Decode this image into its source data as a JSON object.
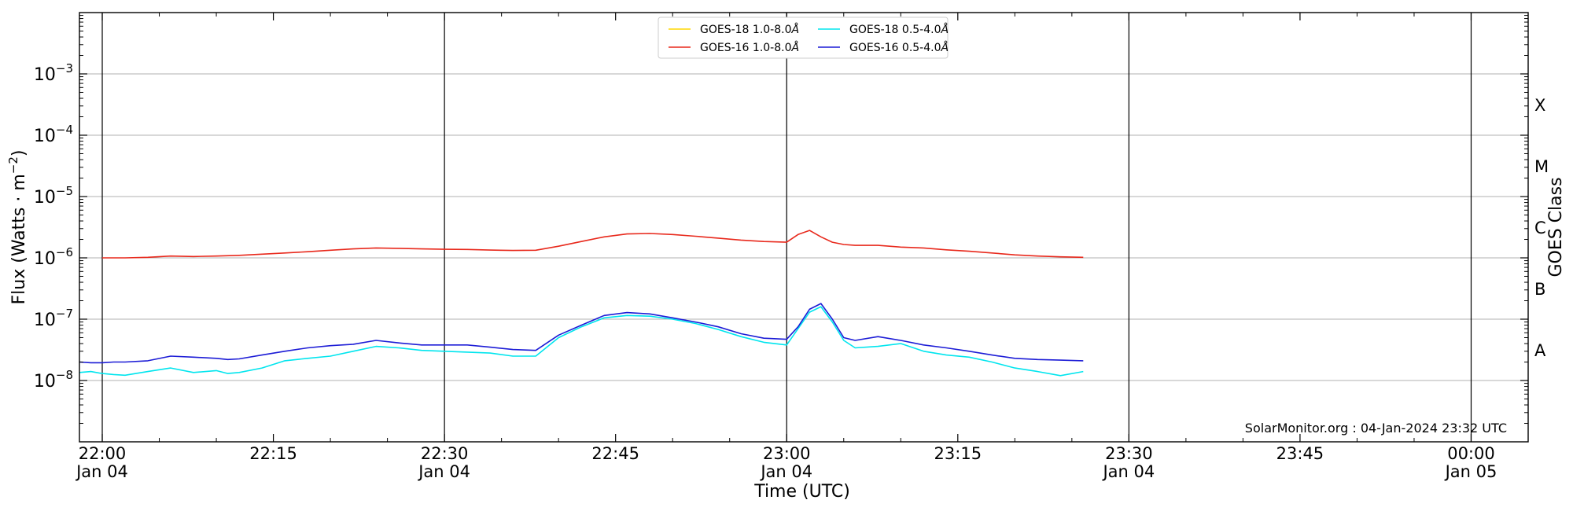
{
  "chart_data": {
    "type": "line",
    "xlabel": "Time (UTC)",
    "ylabel": "Flux (Watts · m",
    "ylabel_superscript": "−2",
    "ylabel_close": ")",
    "y2label": "GOES Class",
    "xlim": [
      "21:58",
      "00:05"
    ],
    "ylim": [
      1e-09,
      0.01
    ],
    "log_y": true,
    "grid": "horizontal",
    "legend_position": "top-center",
    "y_ticks": [
      {
        "value": -8,
        "base": "10",
        "exp": "−8"
      },
      {
        "value": -7,
        "base": "10",
        "exp": "−7"
      },
      {
        "value": -6,
        "base": "10",
        "exp": "−6"
      },
      {
        "value": -5,
        "base": "10",
        "exp": "−5"
      },
      {
        "value": -4,
        "base": "10",
        "exp": "−4"
      },
      {
        "value": -3,
        "base": "10",
        "exp": "−3"
      }
    ],
    "x_ticks": [
      {
        "time": "22:00",
        "label": "22:00",
        "sub": "Jan 04"
      },
      {
        "time": "22:15",
        "label": "22:15",
        "sub": ""
      },
      {
        "time": "22:30",
        "label": "22:30",
        "sub": "Jan 04"
      },
      {
        "time": "22:45",
        "label": "22:45",
        "sub": ""
      },
      {
        "time": "23:00",
        "label": "23:00",
        "sub": "Jan 04"
      },
      {
        "time": "23:15",
        "label": "23:15",
        "sub": ""
      },
      {
        "time": "23:30",
        "label": "23:30",
        "sub": "Jan 04"
      },
      {
        "time": "23:45",
        "label": "23:45",
        "sub": ""
      },
      {
        "time": "00:00",
        "label": "00:00",
        "sub": "Jan 05"
      }
    ],
    "vertical_lines": [
      "22:00",
      "22:30",
      "23:00",
      "23:30",
      "00:00"
    ],
    "goes_classes": [
      {
        "label": "A",
        "value": -7.5
      },
      {
        "label": "B",
        "value": -6.5
      },
      {
        "label": "C",
        "value": -5.5
      },
      {
        "label": "M",
        "value": -4.5
      },
      {
        "label": "X",
        "value": -3.5
      }
    ],
    "series": [
      {
        "name": "GOES-18 1.0-8.0",
        "unit": "Å",
        "color": "#ffd700",
        "x": [],
        "y": []
      },
      {
        "name": "GOES-16 1.0-8.0",
        "unit": "Å",
        "color": "#e8291c",
        "x": [
          "22:00",
          "22:02",
          "22:04",
          "22:06",
          "22:08",
          "22:10",
          "22:12",
          "22:14",
          "22:16",
          "22:18",
          "22:20",
          "22:22",
          "22:24",
          "22:26",
          "22:28",
          "22:30",
          "22:32",
          "22:34",
          "22:36",
          "22:38",
          "22:40",
          "22:42",
          "22:44",
          "22:46",
          "22:48",
          "22:50",
          "22:52",
          "22:54",
          "22:56",
          "22:58",
          "23:00",
          "23:01",
          "23:02",
          "23:03",
          "23:04",
          "23:05",
          "23:06",
          "23:08",
          "23:10",
          "23:12",
          "23:14",
          "23:16",
          "23:18",
          "23:20",
          "23:22",
          "23:24",
          "23:26"
        ],
        "y": [
          1e-06,
          1e-06,
          1.02e-06,
          1.07e-06,
          1.05e-06,
          1.07e-06,
          1.1e-06,
          1.15e-06,
          1.2e-06,
          1.26e-06,
          1.33e-06,
          1.4e-06,
          1.45e-06,
          1.43e-06,
          1.4e-06,
          1.38e-06,
          1.37e-06,
          1.34e-06,
          1.32e-06,
          1.33e-06,
          1.55e-06,
          1.85e-06,
          2.2e-06,
          2.45e-06,
          2.5e-06,
          2.4e-06,
          2.25e-06,
          2.1e-06,
          1.95e-06,
          1.85e-06,
          1.8e-06,
          2.4e-06,
          2.8e-06,
          2.2e-06,
          1.8e-06,
          1.65e-06,
          1.6e-06,
          1.6e-06,
          1.5e-06,
          1.45e-06,
          1.35e-06,
          1.28e-06,
          1.2e-06,
          1.12e-06,
          1.07e-06,
          1.04e-06,
          1.02e-06
        ]
      },
      {
        "name": "GOES-18 0.5-4.0",
        "unit": "Å",
        "color": "#00e5ee",
        "x": [
          "21:58",
          "21:59",
          "22:00",
          "22:01",
          "22:02",
          "22:04",
          "22:06",
          "22:08",
          "22:10",
          "22:11",
          "22:12",
          "22:14",
          "22:16",
          "22:18",
          "22:20",
          "22:22",
          "22:24",
          "22:26",
          "22:28",
          "22:30",
          "22:32",
          "22:34",
          "22:36",
          "22:38",
          "22:40",
          "22:42",
          "22:44",
          "22:46",
          "22:48",
          "22:50",
          "22:52",
          "22:54",
          "22:56",
          "22:58",
          "23:00",
          "23:01",
          "23:02",
          "23:03",
          "23:04",
          "23:05",
          "23:06",
          "23:08",
          "23:10",
          "23:12",
          "23:14",
          "23:16",
          "23:18",
          "23:20",
          "23:22",
          "23:24",
          "23:26"
        ],
        "y": [
          1.35e-08,
          1.4e-08,
          1.3e-08,
          1.25e-08,
          1.22e-08,
          1.4e-08,
          1.6e-08,
          1.35e-08,
          1.45e-08,
          1.3e-08,
          1.35e-08,
          1.6e-08,
          2.1e-08,
          2.3e-08,
          2.5e-08,
          3e-08,
          3.6e-08,
          3.4e-08,
          3.1e-08,
          3e-08,
          2.9e-08,
          2.8e-08,
          2.5e-08,
          2.5e-08,
          5e-08,
          7.5e-08,
          1.05e-07,
          1.15e-07,
          1.12e-07,
          1e-07,
          8.5e-08,
          6.8e-08,
          5.2e-08,
          4.2e-08,
          3.8e-08,
          7e-08,
          1.3e-07,
          1.6e-07,
          9e-08,
          4.5e-08,
          3.4e-08,
          3.6e-08,
          4e-08,
          3e-08,
          2.6e-08,
          2.4e-08,
          2e-08,
          1.6e-08,
          1.4e-08,
          1.2e-08,
          1.4e-08
        ]
      },
      {
        "name": "GOES-16 0.5-4.0",
        "unit": "Å",
        "color": "#1c1cd6",
        "x": [
          "21:58",
          "21:59",
          "22:00",
          "22:01",
          "22:02",
          "22:04",
          "22:06",
          "22:08",
          "22:10",
          "22:11",
          "22:12",
          "22:14",
          "22:16",
          "22:18",
          "22:20",
          "22:22",
          "22:24",
          "22:26",
          "22:28",
          "22:30",
          "22:32",
          "22:34",
          "22:36",
          "22:38",
          "22:40",
          "22:42",
          "22:44",
          "22:46",
          "22:48",
          "22:50",
          "22:52",
          "22:54",
          "22:56",
          "22:58",
          "23:00",
          "23:01",
          "23:02",
          "23:03",
          "23:04",
          "23:05",
          "23:06",
          "23:08",
          "23:10",
          "23:12",
          "23:14",
          "23:16",
          "23:18",
          "23:20",
          "23:22",
          "23:24",
          "23:26"
        ],
        "y": [
          2e-08,
          1.95e-08,
          1.95e-08,
          2e-08,
          2e-08,
          2.1e-08,
          2.5e-08,
          2.4e-08,
          2.3e-08,
          2.2e-08,
          2.25e-08,
          2.6e-08,
          3e-08,
          3.4e-08,
          3.7e-08,
          3.9e-08,
          4.5e-08,
          4.1e-08,
          3.8e-08,
          3.8e-08,
          3.8e-08,
          3.5e-08,
          3.2e-08,
          3.1e-08,
          5.5e-08,
          8e-08,
          1.15e-07,
          1.28e-07,
          1.22e-07,
          1.05e-07,
          9e-08,
          7.5e-08,
          5.8e-08,
          4.9e-08,
          4.7e-08,
          7.5e-08,
          1.45e-07,
          1.8e-07,
          1e-07,
          5e-08,
          4.5e-08,
          5.2e-08,
          4.5e-08,
          3.8e-08,
          3.4e-08,
          3e-08,
          2.6e-08,
          2.3e-08,
          2.2e-08,
          2.15e-08,
          2.1e-08
        ]
      }
    ]
  },
  "footer": {
    "credit": "SolarMonitor.org : 04-Jan-2024 23:32 UTC"
  }
}
